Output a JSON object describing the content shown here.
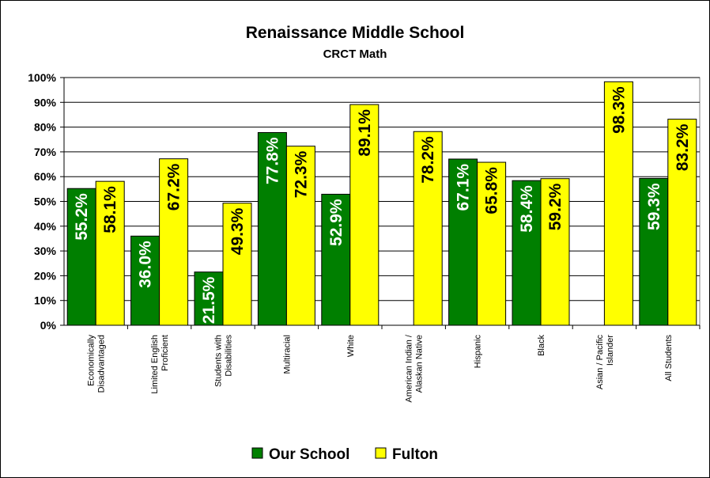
{
  "chart_data": {
    "type": "bar",
    "title": "Renaissance Middle School",
    "subtitle": "CRCT Math",
    "categories": [
      [
        "Economically",
        "Disadvantaged"
      ],
      [
        "Limited English",
        "Proficient"
      ],
      [
        "Students with",
        "Disabilities"
      ],
      [
        "Multiracial"
      ],
      [
        "White"
      ],
      [
        "American Indian /",
        "Alaskan Native"
      ],
      [
        "Hispanic"
      ],
      [
        "Black"
      ],
      [
        "Asian / Pacific",
        "Islander"
      ],
      [
        "All Students"
      ]
    ],
    "series": [
      {
        "name": "Our School",
        "color": "#007F00",
        "label_color": "#ffffff",
        "values": [
          55.2,
          36.0,
          21.5,
          77.8,
          52.9,
          null,
          67.1,
          58.4,
          null,
          59.3
        ],
        "labels": [
          "55.2%",
          "36.0%",
          "21.5%",
          "77.8%",
          "52.9%",
          "",
          "67.1%",
          "58.4%",
          "",
          "59.3%"
        ]
      },
      {
        "name": "Fulton",
        "color": "#FFFF00",
        "label_color": "#000000",
        "values": [
          58.1,
          67.2,
          49.3,
          72.3,
          89.1,
          78.2,
          65.8,
          59.2,
          98.3,
          83.2
        ],
        "labels": [
          "58.1%",
          "67.2%",
          "49.3%",
          "72.3%",
          "89.1%",
          "78.2%",
          "65.8%",
          "59.2%",
          "98.3%",
          "83.2%"
        ]
      }
    ],
    "y_ticks": [
      "0%",
      "10%",
      "20%",
      "30%",
      "40%",
      "50%",
      "60%",
      "70%",
      "80%",
      "90%",
      "100%"
    ],
    "ylim": [
      0,
      100
    ],
    "grid": true,
    "legend_position": "bottom",
    "xlabel": "",
    "ylabel": ""
  }
}
